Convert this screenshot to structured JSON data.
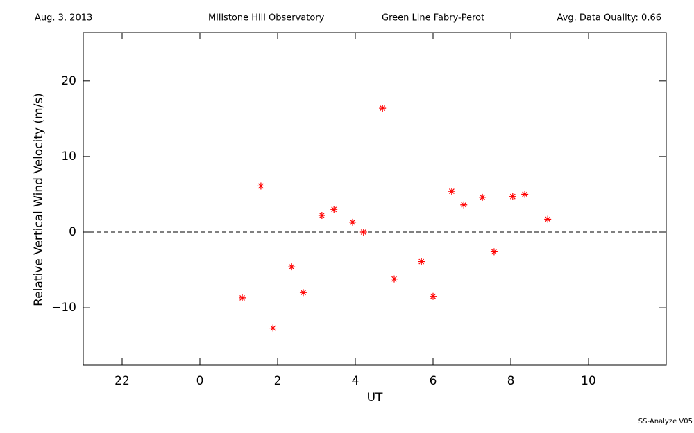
{
  "chart_data": {
    "type": "scatter",
    "header": {
      "date": "Aug. 3, 2013",
      "site": "Millstone Hill Observatory",
      "instrument": "Green Line Fabry-Perot",
      "quality": "Avg. Data Quality: 0.66"
    },
    "footer": "SS-Analyze V05",
    "xlabel": "UT",
    "ylabel": "Relative Vertical Wind Velocity (m/s)",
    "xlim": [
      -3,
      12
    ],
    "xticks": [
      {
        "value": -2,
        "label": "22"
      },
      0,
      2,
      4,
      6,
      8,
      10
    ],
    "ylim": [
      -17.6,
      26.4
    ],
    "yticks": [
      {
        "value": -10,
        "label": "−10"
      },
      0,
      10,
      20
    ],
    "hline": 0,
    "series": [
      {
        "color": "#ff0000",
        "x": [
          1.09,
          1.57,
          1.88,
          2.36,
          2.66,
          3.14,
          3.45,
          3.93,
          4.21,
          4.7,
          5.0,
          5.7,
          6.0,
          6.48,
          6.79,
          7.27,
          7.57,
          8.05,
          8.36,
          8.95
        ],
        "values": [
          -8.7,
          6.1,
          -12.7,
          -4.6,
          -8.0,
          2.2,
          3.0,
          1.3,
          0.0,
          16.4,
          -6.2,
          -3.9,
          -8.5,
          5.4,
          3.6,
          4.6,
          -2.6,
          4.7,
          5.0,
          1.7
        ]
      }
    ]
  }
}
